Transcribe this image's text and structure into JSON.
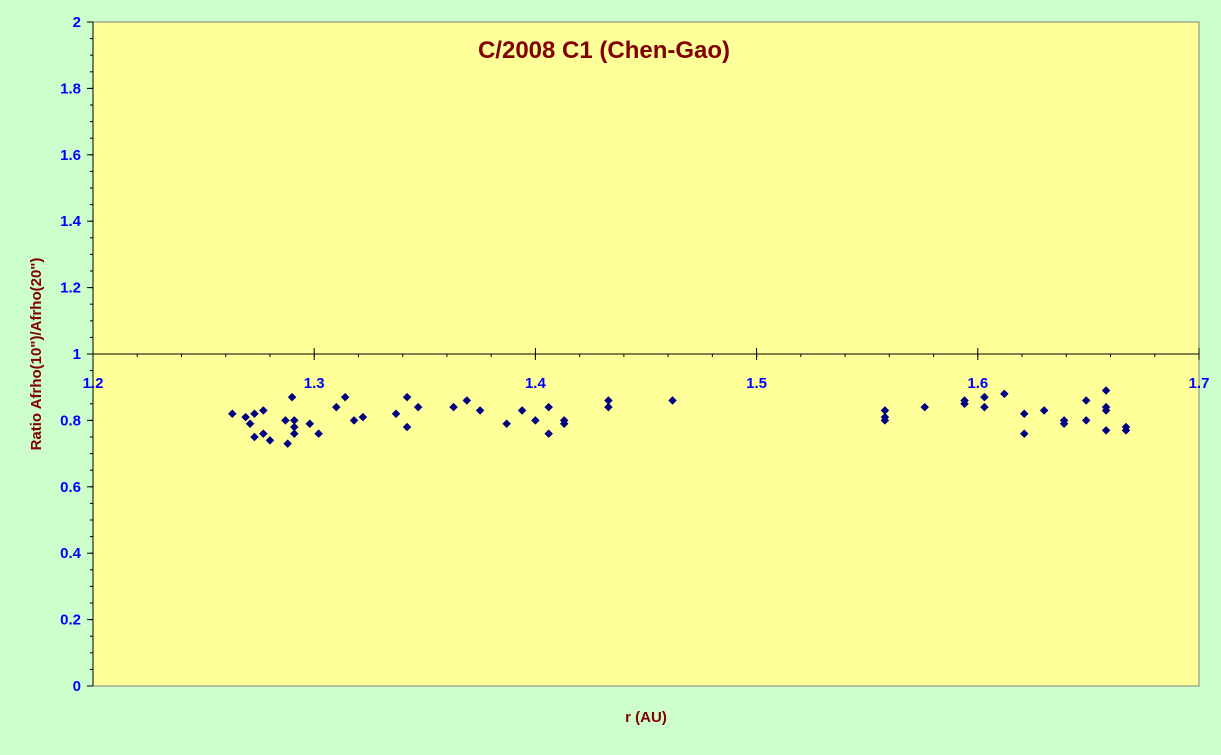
{
  "chart_data": {
    "type": "scatter",
    "title": "C/2008 C1 (Chen-Gao)",
    "xlabel": "r (AU)",
    "ylabel": "Ratio Afrho(10\")/Afrho(20\")",
    "xlim": [
      1.2,
      1.7
    ],
    "ylim": [
      0,
      2
    ],
    "x_ticks": [
      "1.2",
      "1.3",
      "1.4",
      "1.5",
      "1.6",
      "1.7"
    ],
    "y_ticks": [
      "0",
      "0.2",
      "0.4",
      "0.6",
      "0.8",
      "1",
      "1.2",
      "1.4",
      "1.6",
      "1.8",
      "2"
    ],
    "x_axis_crosses_at_y": 1,
    "grid": false,
    "legend": "none",
    "colors": {
      "background": "#ccffcc",
      "plot_area": "#ffff99",
      "marker": "#000080",
      "title": "#800000",
      "tick_labels": "#0000ff"
    },
    "series": [
      {
        "marker": "diamond",
        "points": [
          [
            1.263,
            0.82
          ],
          [
            1.269,
            0.81
          ],
          [
            1.271,
            0.79
          ],
          [
            1.273,
            0.82
          ],
          [
            1.273,
            0.75
          ],
          [
            1.277,
            0.83
          ],
          [
            1.277,
            0.76
          ],
          [
            1.28,
            0.74
          ],
          [
            1.287,
            0.8
          ],
          [
            1.288,
            0.73
          ],
          [
            1.29,
            0.87
          ],
          [
            1.291,
            0.8
          ],
          [
            1.291,
            0.78
          ],
          [
            1.291,
            0.76
          ],
          [
            1.298,
            0.79
          ],
          [
            1.302,
            0.76
          ],
          [
            1.31,
            0.84
          ],
          [
            1.314,
            0.87
          ],
          [
            1.318,
            0.8
          ],
          [
            1.322,
            0.81
          ],
          [
            1.337,
            0.82
          ],
          [
            1.342,
            0.87
          ],
          [
            1.342,
            0.78
          ],
          [
            1.347,
            0.84
          ],
          [
            1.363,
            0.84
          ],
          [
            1.369,
            0.86
          ],
          [
            1.375,
            0.83
          ],
          [
            1.387,
            0.79
          ],
          [
            1.394,
            0.83
          ],
          [
            1.4,
            0.8
          ],
          [
            1.406,
            0.84
          ],
          [
            1.406,
            0.76
          ],
          [
            1.413,
            0.79
          ],
          [
            1.413,
            0.8
          ],
          [
            1.433,
            0.86
          ],
          [
            1.433,
            0.84
          ],
          [
            1.462,
            0.86
          ],
          [
            1.558,
            0.83
          ],
          [
            1.558,
            0.81
          ],
          [
            1.558,
            0.8
          ],
          [
            1.576,
            0.84
          ],
          [
            1.594,
            0.85
          ],
          [
            1.594,
            0.86
          ],
          [
            1.603,
            0.87
          ],
          [
            1.603,
            0.84
          ],
          [
            1.612,
            0.88
          ],
          [
            1.621,
            0.82
          ],
          [
            1.621,
            0.76
          ],
          [
            1.63,
            0.83
          ],
          [
            1.639,
            0.79
          ],
          [
            1.639,
            0.8
          ],
          [
            1.649,
            0.86
          ],
          [
            1.649,
            0.8
          ],
          [
            1.658,
            0.89
          ],
          [
            1.658,
            0.84
          ],
          [
            1.658,
            0.83
          ],
          [
            1.658,
            0.77
          ],
          [
            1.667,
            0.78
          ],
          [
            1.667,
            0.77
          ]
        ]
      }
    ]
  }
}
